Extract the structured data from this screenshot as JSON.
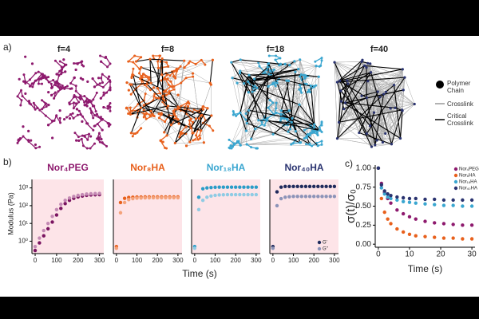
{
  "panel_labels": [
    "a)",
    "b)",
    "c)"
  ],
  "network": {
    "titles": [
      "f=4",
      "f=8",
      "f=18",
      "f=40"
    ],
    "colors": [
      "#8e1a6e",
      "#e8601c",
      "#3aa6d0",
      "#2a3370"
    ],
    "legend": [
      "Polymer Chain",
      "Crosslink",
      "Critical Crosslink"
    ]
  },
  "panel_b_axes": {
    "y_label": "Modulus (Pa)",
    "x_label": "Time (s)"
  },
  "chart_data": [
    {
      "type": "scatter",
      "title": "Nor₄PEG",
      "title_color": "#8e1a6e",
      "log_y": true,
      "background": "#fde4e8",
      "x": [
        0,
        20,
        40,
        60,
        80,
        100,
        120,
        140,
        160,
        180,
        200,
        220,
        240,
        260,
        280,
        300
      ],
      "xlim": [
        -15,
        320
      ],
      "xticks": [
        0,
        100,
        200,
        300
      ],
      "ylim": [
        0.2,
        3000
      ],
      "yticks": [
        {
          "value": 1,
          "label": "10⁰"
        },
        {
          "value": 10,
          "label": "10¹"
        },
        {
          "value": 100,
          "label": "10²"
        },
        {
          "value": 1000,
          "label": "10³"
        }
      ],
      "series": [
        {
          "color": "#7a1460",
          "values": [
            0.3,
            0.8,
            2,
            5,
            12,
            30,
            70,
            130,
            200,
            260,
            310,
            350,
            380,
            400,
            410,
            420
          ]
        },
        {
          "color": "#c48ab4",
          "values": [
            0.5,
            1.5,
            4,
            10,
            25,
            60,
            120,
            200,
            270,
            330,
            380,
            420,
            450,
            470,
            480,
            490
          ]
        }
      ]
    },
    {
      "type": "scatter",
      "title": "Nor₈HA",
      "title_color": "#e8601c",
      "log_y": true,
      "background": "#fde4e8",
      "x": [
        0,
        20,
        40,
        60,
        80,
        100,
        120,
        140,
        160,
        180,
        200,
        220,
        240,
        260,
        280,
        300
      ],
      "xlim": [
        -15,
        320
      ],
      "xticks": [
        0,
        100,
        200,
        300
      ],
      "ylim": [
        0.2,
        3000
      ],
      "series": [
        {
          "color": "#e8601c",
          "values": [
            0.5,
            150,
            260,
            290,
            300,
            305,
            308,
            310,
            310,
            310,
            310,
            310,
            310,
            310,
            310,
            310
          ]
        },
        {
          "color": "#f4a27a",
          "values": [
            0.4,
            40,
            150,
            220,
            250,
            265,
            270,
            275,
            278,
            280,
            280,
            280,
            280,
            280,
            280,
            280
          ]
        }
      ]
    },
    {
      "type": "scatter",
      "title": "Nor₁₈HA",
      "title_color": "#3aa6d0",
      "log_y": true,
      "background": "#fde4e8",
      "x": [
        0,
        20,
        40,
        60,
        80,
        100,
        120,
        140,
        160,
        180,
        200,
        220,
        240,
        260,
        280,
        300
      ],
      "xlim": [
        -15,
        320
      ],
      "xticks": [
        0,
        100,
        200,
        300
      ],
      "ylim": [
        0.2,
        3000
      ],
      "series": [
        {
          "color": "#2a9cc8",
          "values": [
            0.5,
            300,
            900,
            1000,
            1050,
            1080,
            1100,
            1100,
            1100,
            1100,
            1100,
            1100,
            1100,
            1100,
            1100,
            1100
          ]
        },
        {
          "color": "#8fcbe4",
          "values": [
            0.4,
            60,
            200,
            300,
            350,
            380,
            400,
            410,
            420,
            420,
            420,
            420,
            420,
            420,
            420,
            420
          ]
        }
      ]
    },
    {
      "type": "scatter",
      "title": "Nor₄₀HA",
      "title_color": "#2a3370",
      "log_y": true,
      "background": "#fde4e8",
      "legend": "lower right",
      "x": [
        0,
        20,
        40,
        60,
        80,
        100,
        120,
        140,
        160,
        180,
        200,
        220,
        240,
        260,
        280,
        300
      ],
      "xlim": [
        -15,
        320
      ],
      "xticks": [
        0,
        100,
        200,
        300
      ],
      "ylim": [
        0.2,
        3000
      ],
      "series": [
        {
          "name": "G'",
          "color": "#1f2a5c",
          "values": [
            0.5,
            600,
            1100,
            1200,
            1200,
            1200,
            1200,
            1200,
            1200,
            1200,
            1200,
            1200,
            1200,
            1200,
            1200,
            1200
          ]
        },
        {
          "name": "G''",
          "color": "#8c93b8",
          "values": [
            0.4,
            100,
            250,
            300,
            320,
            330,
            330,
            330,
            330,
            330,
            330,
            330,
            330,
            330,
            330,
            330
          ]
        }
      ]
    },
    {
      "type": "scatter",
      "x_label": "Time (s)",
      "y_label": "σ(t)/σ₀",
      "legend": "upper right",
      "x": [
        0,
        1,
        2,
        3,
        4,
        6,
        8,
        10,
        12,
        15,
        18,
        21,
        24,
        27,
        30
      ],
      "xlim": [
        -1,
        31
      ],
      "xticks": [
        0,
        10,
        20,
        30
      ],
      "ylim": [
        -0.04,
        1.04
      ],
      "yticks": [
        {
          "value": 0,
          "label": "0.00"
        },
        {
          "value": 0.25,
          "label": "0.25"
        },
        {
          "value": 0.5,
          "label": "0.50"
        },
        {
          "value": 0.75,
          "label": "0.75"
        },
        {
          "value": 1,
          "label": "1.00"
        }
      ],
      "series": [
        {
          "name": "Nor₄PEG",
          "color": "#8e1a6e",
          "values": [
            1,
            0.8,
            0.68,
            0.6,
            0.54,
            0.45,
            0.4,
            0.36,
            0.33,
            0.3,
            0.28,
            0.27,
            0.26,
            0.25,
            0.25
          ]
        },
        {
          "name": "Nor₈HA",
          "color": "#e8601c",
          "values": [
            1,
            0.6,
            0.42,
            0.33,
            0.27,
            0.2,
            0.16,
            0.13,
            0.11,
            0.1,
            0.09,
            0.08,
            0.08,
            0.07,
            0.07
          ]
        },
        {
          "name": "Nor₁₈HA",
          "color": "#3aa6d0",
          "values": [
            1,
            0.74,
            0.66,
            0.62,
            0.6,
            0.58,
            0.56,
            0.55,
            0.54,
            0.53,
            0.52,
            0.51,
            0.51,
            0.5,
            0.5
          ]
        },
        {
          "name": "Nor₄₀HA",
          "color": "#2a3370",
          "values": [
            1,
            0.78,
            0.7,
            0.66,
            0.64,
            0.62,
            0.61,
            0.6,
            0.6,
            0.59,
            0.59,
            0.58,
            0.58,
            0.58,
            0.58
          ]
        }
      ]
    }
  ]
}
